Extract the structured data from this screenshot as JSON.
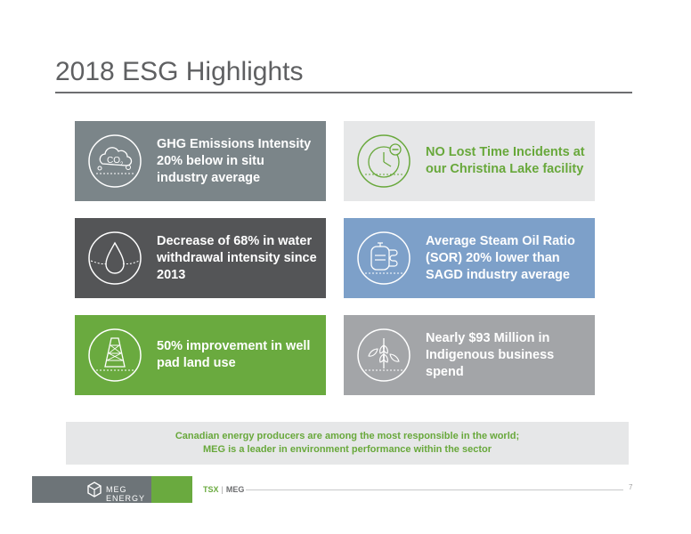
{
  "title": "2018 ESG Highlights",
  "tiles": [
    {
      "text": "GHG Emissions Intensity 20% below in situ industry average",
      "icon": "co2-cloud-icon"
    },
    {
      "text": "NO Lost Time Incidents at our Christina Lake facility",
      "icon": "clock-icon"
    },
    {
      "text": "Decrease of 68% in water withdrawal intensity since 2013",
      "icon": "water-drop-icon"
    },
    {
      "text": "Average Steam Oil Ratio (SOR) 20% lower than SAGD industry average",
      "icon": "boiler-icon"
    },
    {
      "text": "50% improvement in well pad land use",
      "icon": "derrick-icon"
    },
    {
      "text": "Nearly $93 Million in Indigenous business spend",
      "icon": "plant-icon"
    }
  ],
  "banner": {
    "line1": "Canadian energy producers are among the most responsible in the world;",
    "line2": "MEG is a leader in environment performance within the sector"
  },
  "footer": {
    "logo_text": "MEG ENERGY",
    "exchange": "TSX",
    "symbol": "MEG",
    "page": "7"
  },
  "colors": {
    "slate": "#7b8589",
    "light_gray": "#e6e7e8",
    "charcoal": "#545557",
    "blue": "#7da0c9",
    "green": "#6aaa3f",
    "mid_gray": "#a3a5a8"
  }
}
